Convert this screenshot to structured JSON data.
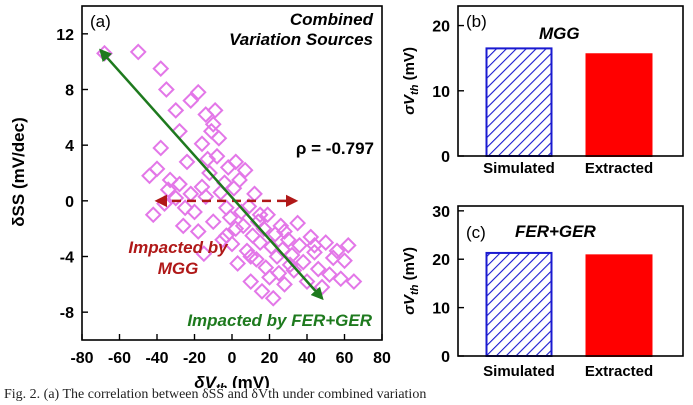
{
  "chart_data": [
    {
      "type": "scatter",
      "panel_label": "(a)",
      "title": "Combined Variation Sources",
      "title_lines": [
        "Combined",
        "Variation Sources"
      ],
      "xlabel": "δVth (mV)",
      "xlabel_main": "δV",
      "xlabel_sub": "th",
      "xlabel_unit": " (mV)",
      "ylabel": "δSS (mV/dec)",
      "xlim": [
        -80,
        80
      ],
      "ylim": [
        -10,
        14
      ],
      "xticks": [
        -80,
        -60,
        -40,
        -20,
        0,
        20,
        40,
        60,
        80
      ],
      "yticks": [
        -8,
        -4,
        0,
        4,
        8,
        12
      ],
      "marker": "diamond",
      "marker_color": "#e377e8",
      "annotation_rho": "ρ = -0.797",
      "annotation_mgg": [
        "Impacted by",
        "MGG"
      ],
      "annotation_fer": "Impacted by FER+GER",
      "mgg_color": "#b01818",
      "fer_color": "#1e7a1e",
      "arrow_mgg": {
        "x1": -40,
        "x2": 34,
        "y": 0
      },
      "arrow_fer": {
        "x1": -70,
        "y1": 10.8,
        "x2": 48,
        "y2": -7.0
      },
      "x": [
        -68,
        -50,
        -38,
        -35,
        -30,
        -28,
        -22,
        -18,
        -16,
        -14,
        -13,
        -11,
        -10,
        -44,
        -42,
        -40,
        -38,
        -36,
        -34,
        -33,
        -30,
        -28,
        -26,
        -24,
        -22,
        -20,
        -18,
        -16,
        -15,
        -14,
        -12,
        -10,
        -8,
        -6,
        -5,
        -4,
        -3,
        -2,
        -1,
        0,
        1,
        2,
        3,
        4,
        5,
        6,
        7,
        8,
        9,
        10,
        11,
        12,
        13,
        14,
        15,
        16,
        17,
        18,
        19,
        20,
        21,
        22,
        23,
        24,
        25,
        26,
        27,
        28,
        30,
        31,
        32,
        33,
        35,
        36,
        38,
        40,
        42,
        44,
        46,
        48,
        50,
        52,
        54,
        56,
        58,
        60,
        62,
        65,
        -9,
        -7,
        -25,
        2,
        15,
        28,
        44,
        -3,
        10
      ],
      "y": [
        10.6,
        10.7,
        9.5,
        8.0,
        6.5,
        5.0,
        7.2,
        7.8,
        4.1,
        6.2,
        3.0,
        5.0,
        5.5,
        1.8,
        -1.0,
        2.3,
        3.8,
        -0.2,
        0.8,
        1.5,
        0.2,
        1.2,
        -1.8,
        2.8,
        0.5,
        -0.8,
        -2.2,
        1.0,
        -3.8,
        0.3,
        2.0,
        -1.5,
        3.2,
        0.6,
        -2.8,
        1.3,
        -0.5,
        2.4,
        -1.2,
        -3.1,
        0.9,
        -2.0,
        -4.5,
        1.5,
        -0.8,
        -1.8,
        2.2,
        -3.6,
        -0.4,
        -5.8,
        -2.5,
        0.5,
        -4.2,
        -1.5,
        -3.0,
        -6.5,
        -2.0,
        -4.8,
        -1.0,
        -5.5,
        -3.3,
        -7.0,
        -2.4,
        -4.0,
        -5.2,
        -1.8,
        -3.5,
        -6.0,
        -2.8,
        -4.6,
        -3.9,
        -5.0,
        -1.6,
        -3.2,
        -4.4,
        -5.8,
        -2.6,
        -3.7,
        -4.9,
        -6.2,
        -3.0,
        -5.3,
        -4.1,
        -3.6,
        -5.6,
        -4.3,
        -3.2,
        -5.8,
        6.5,
        4.5,
        -0.5,
        2.8,
        -1.0,
        -2.2,
        -3.2,
        -2.5,
        -4.0
      ]
    },
    {
      "type": "bar",
      "panel_label": "(b)",
      "title": "MGG",
      "ylabel": "σVth (mV)",
      "ylabel_main": "σV",
      "ylabel_sub": "th",
      "ylabel_unit": " (mV)",
      "categories": [
        "Simulated",
        "Extracted"
      ],
      "values": [
        16.5,
        15.6
      ],
      "ylim": [
        0,
        23
      ],
      "yticks": [
        0,
        10,
        20
      ],
      "colors": [
        "#1a1ad0",
        "#ff0000"
      ],
      "fills": [
        "hatch",
        "solid"
      ]
    },
    {
      "type": "bar",
      "panel_label": "(c)",
      "title": "FER+GER",
      "ylabel": "σVth (mV)",
      "ylabel_main": "σV",
      "ylabel_sub": "th",
      "ylabel_unit": " (mV)",
      "categories": [
        "Simulated",
        "Extracted"
      ],
      "values": [
        21.3,
        20.8
      ],
      "ylim": [
        0,
        31
      ],
      "yticks": [
        0,
        10,
        20,
        30
      ],
      "colors": [
        "#1a1ad0",
        "#ff0000"
      ],
      "fills": [
        "hatch",
        "solid"
      ]
    }
  ],
  "caption": "Fig. 2. (a) The correlation between δSS and δVth under combined variation"
}
